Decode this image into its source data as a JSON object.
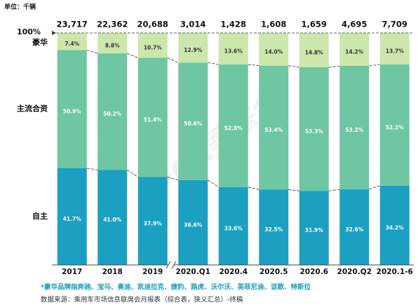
{
  "chart_data": {
    "type": "stacked_bar_100",
    "unit": "单位：千辆",
    "categories": [
      "2017",
      "2018",
      "2019",
      "2020.Q1",
      "2020.4",
      "2020.5",
      "2020.6",
      "2020.Q2",
      "2020.1-6"
    ],
    "totals": [
      23717,
      22362,
      20688,
      3014,
      1428,
      1608,
      1659,
      4695,
      7709
    ],
    "totals_labels": [
      "23,717",
      "22,362",
      "20,688",
      "3,014",
      "1,428",
      "1,608",
      "1,659",
      "4,695",
      "7,709"
    ],
    "series": [
      {
        "name": "自主",
        "color": "#1ba0c2",
        "values": [
          41.7,
          41.0,
          37.9,
          36.6,
          33.6,
          32.5,
          31.9,
          32.6,
          34.2
        ],
        "value_labels": [
          "41.7%",
          "41.0%",
          "37.9%",
          "36.6%",
          "33.6%",
          "32.5%",
          "31.9%",
          "32.6%",
          "34.2%"
        ]
      },
      {
        "name": "主流合资",
        "color": "#6ec6a2",
        "values": [
          50.9,
          50.2,
          51.4,
          50.6,
          52.8,
          53.4,
          53.3,
          53.2,
          52.2
        ],
        "value_labels": [
          "50.9%",
          "50.2%",
          "51.4%",
          "50.6%",
          "52.8%",
          "53.4%",
          "53.3%",
          "53.2%",
          "52.2%"
        ]
      },
      {
        "name": "豪华",
        "color": "#cbe7ab",
        "values": [
          7.4,
          8.8,
          10.7,
          12.9,
          13.6,
          14.0,
          14.8,
          14.2,
          13.7
        ],
        "value_labels": [
          "7.4%",
          "8.8%",
          "10.7%",
          "12.9%",
          "13.6%",
          "14.0%",
          "14.8%",
          "14.2%",
          "13.7%"
        ]
      }
    ],
    "ylim": [
      0,
      100
    ],
    "yticks": [
      {
        "value": 100,
        "label": "100%"
      }
    ],
    "watermark": "CPCA乘联会",
    "footnotes": [
      "*豪华品牌指奔驰、宝马、奥迪、凯迪拉克、捷豹、路虎、沃尔沃、英菲尼迪、讴歌、特斯拉",
      "数据来源：乘用车市场信息联席会月报表（综合表，狭义汇总）-终稿"
    ]
  }
}
